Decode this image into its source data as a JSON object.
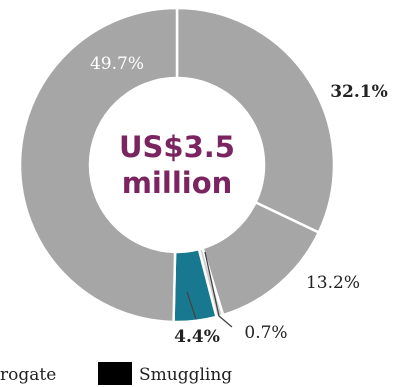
{
  "chart_data": {
    "type": "pie",
    "center_label": [
      "US$3.5",
      "million"
    ],
    "slices": [
      {
        "value": 32.1,
        "label": "32.1%",
        "color": "#a6a6a6",
        "bold": true
      },
      {
        "value": 13.2,
        "label": "13.2%",
        "color": "#a6a6a6",
        "bold": false
      },
      {
        "value": 0.7,
        "label": "0.7%",
        "color": "#d0d0d0",
        "bold": false
      },
      {
        "value": 4.4,
        "label": "4.4%",
        "color": "#17788f",
        "bold": true
      },
      {
        "value": 49.7,
        "label": "49.7%",
        "color": "#a6a6a6",
        "bold": false
      }
    ],
    "legend": [
      {
        "name": "rogate",
        "color": null
      },
      {
        "name": "Smuggling",
        "color": "#000000"
      }
    ]
  },
  "colors": {
    "center_text": "#7b2560",
    "label_text": "#222222",
    "inner_label_text": "#ffffff",
    "separator": "#ffffff",
    "leader_line": "#444444"
  }
}
